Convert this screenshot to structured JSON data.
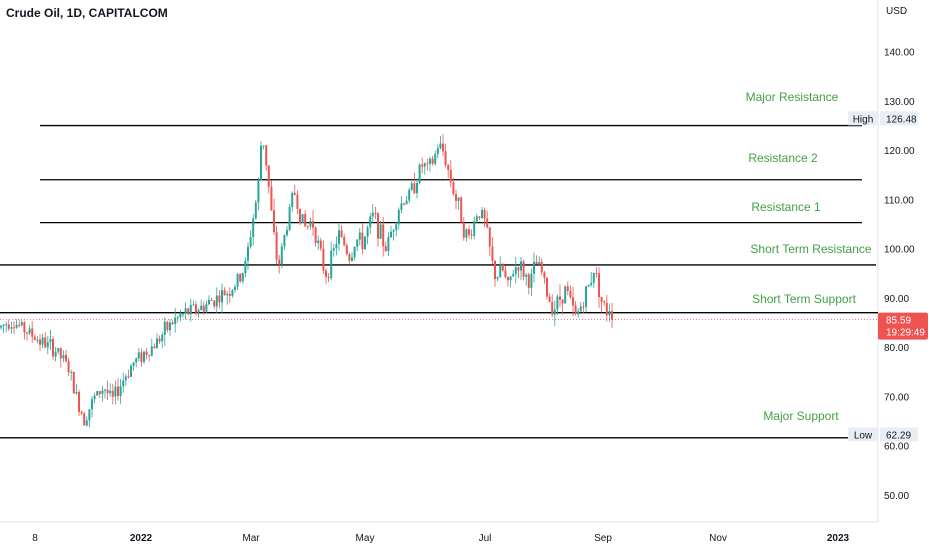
{
  "chart_data": {
    "type": "candlestick",
    "title": "Crude Oil, 1D, CAPITALCOM",
    "currency": "USD",
    "x_tick_labels": [
      "8",
      "2022",
      "Mar",
      "May",
      "Jul",
      "Sep",
      "Nov",
      "2023"
    ],
    "y_tick_labels": [
      "140.00",
      "130.00",
      "120.00",
      "110.00",
      "100.00",
      "90.00",
      "80.00",
      "70.00",
      "60.00",
      "50.00"
    ],
    "y_ticks": [
      140,
      130,
      120,
      110,
      100,
      90,
      80,
      70,
      60,
      50
    ],
    "ylim": [
      44.5,
      150.5
    ],
    "grid": false,
    "colors": {
      "up": "#26a69a",
      "down": "#ef5350",
      "level_line": "#000000",
      "annotation": "#43a047",
      "current_price_bg": "#ef5350"
    },
    "levels": [
      {
        "name": "Major Resistance",
        "value": 125.0
      },
      {
        "name": "Resistance 2",
        "value": 114.0
      },
      {
        "name": "Resistance 1",
        "value": 105.3
      },
      {
        "name": "Short Term Resistance",
        "value": 96.7
      },
      {
        "name": "Short Term Support",
        "value": 87.0
      },
      {
        "name": "Major Support",
        "value": 61.6
      }
    ],
    "high": {
      "label": "High",
      "value": "126.48"
    },
    "low": {
      "label": "Low",
      "value": "62.29"
    },
    "last_price": {
      "value": "85.59",
      "countdown": "19:29:49"
    },
    "price_path": [
      [
        0,
        84.0
      ],
      [
        10,
        85.5
      ],
      [
        20,
        84.2
      ],
      [
        32,
        82.5
      ],
      [
        42,
        81.0
      ],
      [
        55,
        79.5
      ],
      [
        68,
        76.0
      ],
      [
        76,
        70.0
      ],
      [
        84,
        65.5
      ],
      [
        94,
        69.5
      ],
      [
        104,
        72.0
      ],
      [
        112,
        69.0
      ],
      [
        122,
        73.0
      ],
      [
        132,
        76.5
      ],
      [
        142,
        78.5
      ],
      [
        152,
        80.0
      ],
      [
        162,
        82.5
      ],
      [
        172,
        85.0
      ],
      [
        182,
        86.5
      ],
      [
        192,
        87.5
      ],
      [
        202,
        88.0
      ],
      [
        212,
        89.5
      ],
      [
        222,
        90.5
      ],
      [
        232,
        92.0
      ],
      [
        240,
        94.0
      ],
      [
        246,
        97.0
      ],
      [
        252,
        105.0
      ],
      [
        258,
        112.0
      ],
      [
        262,
        124.0
      ],
      [
        266,
        118.0
      ],
      [
        270,
        110.0
      ],
      [
        274,
        102.0
      ],
      [
        278,
        96.0
      ],
      [
        282,
        100.0
      ],
      [
        288,
        106.0
      ],
      [
        294,
        112.0
      ],
      [
        300,
        107.0
      ],
      [
        306,
        104.0
      ],
      [
        312,
        106.0
      ],
      [
        318,
        101.0
      ],
      [
        322,
        97.0
      ],
      [
        326,
        95.0
      ],
      [
        332,
        98.0
      ],
      [
        338,
        103.0
      ],
      [
        344,
        101.0
      ],
      [
        350,
        98.0
      ],
      [
        356,
        102.0
      ],
      [
        362,
        101.0
      ],
      [
        368,
        104.0
      ],
      [
        374,
        107.0
      ],
      [
        380,
        103.0
      ],
      [
        386,
        100.0
      ],
      [
        392,
        104.0
      ],
      [
        398,
        108.0
      ],
      [
        404,
        110.0
      ],
      [
        410,
        111.0
      ],
      [
        416,
        114.0
      ],
      [
        422,
        117.0
      ],
      [
        428,
        116.0
      ],
      [
        434,
        118.0
      ],
      [
        438,
        121.0
      ],
      [
        444,
        119.5
      ],
      [
        448,
        116.0
      ],
      [
        452,
        113.0
      ],
      [
        456,
        110.0
      ],
      [
        460,
        108.0
      ],
      [
        464,
        104.0
      ],
      [
        468,
        102.0
      ],
      [
        472,
        104.0
      ],
      [
        478,
        108.0
      ],
      [
        484,
        106.0
      ],
      [
        488,
        102.0
      ],
      [
        492,
        97.0
      ],
      [
        496,
        94.0
      ],
      [
        502,
        96.0
      ],
      [
        508,
        92.0
      ],
      [
        512,
        95.0
      ],
      [
        518,
        97.0
      ],
      [
        524,
        95.0
      ],
      [
        530,
        93.0
      ],
      [
        536,
        97.0
      ],
      [
        542,
        95.0
      ],
      [
        548,
        90.0
      ],
      [
        554,
        88.0
      ],
      [
        560,
        90.0
      ],
      [
        566,
        92.0
      ],
      [
        572,
        88.0
      ],
      [
        576,
        86.0
      ],
      [
        582,
        89.0
      ],
      [
        588,
        92.0
      ],
      [
        594,
        96.0
      ],
      [
        598,
        93.0
      ],
      [
        602,
        89.0
      ],
      [
        606,
        87.0
      ],
      [
        610,
        88.5
      ],
      [
        614,
        85.59
      ]
    ]
  }
}
